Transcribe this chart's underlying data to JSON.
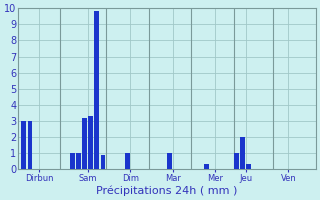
{
  "bars": [
    {
      "x": 1,
      "height": 3.0
    },
    {
      "x": 2,
      "height": 3.0
    },
    {
      "x": 9,
      "height": 1.0
    },
    {
      "x": 10,
      "height": 1.0
    },
    {
      "x": 11,
      "height": 3.2
    },
    {
      "x": 12,
      "height": 3.3
    },
    {
      "x": 13,
      "height": 9.8
    },
    {
      "x": 14,
      "height": 0.9
    },
    {
      "x": 18,
      "height": 1.0
    },
    {
      "x": 25,
      "height": 1.0
    },
    {
      "x": 31,
      "height": 0.35
    },
    {
      "x": 36,
      "height": 1.0
    },
    {
      "x": 37,
      "height": 2.0
    },
    {
      "x": 38,
      "height": 0.35
    }
  ],
  "day_labels": [
    {
      "label": "Dirbun",
      "tick": 3.5
    },
    {
      "label": "Sam",
      "tick": 11.5
    },
    {
      "label": "Dim",
      "tick": 18.5
    },
    {
      "label": "Mar",
      "tick": 25.5
    },
    {
      "label": "Mer",
      "tick": 32.5
    },
    {
      "label": "Jeu",
      "tick": 37.5
    },
    {
      "label": "Ven",
      "tick": 44.5
    }
  ],
  "day_separators": [
    7,
    14.5,
    21.5,
    28.5,
    35.5,
    42.0
  ],
  "bar_color": "#1a35cc",
  "bg_color": "#cdf0f0",
  "grid_color": "#a0c8c8",
  "tick_color": "#3333bb",
  "xlabel": "Précipitations 24h ( mm )",
  "ylim": [
    0,
    10
  ],
  "yticks": [
    0,
    1,
    2,
    3,
    4,
    5,
    6,
    7,
    8,
    9,
    10
  ],
  "bar_width": 0.8,
  "xlim": [
    0,
    49
  ]
}
